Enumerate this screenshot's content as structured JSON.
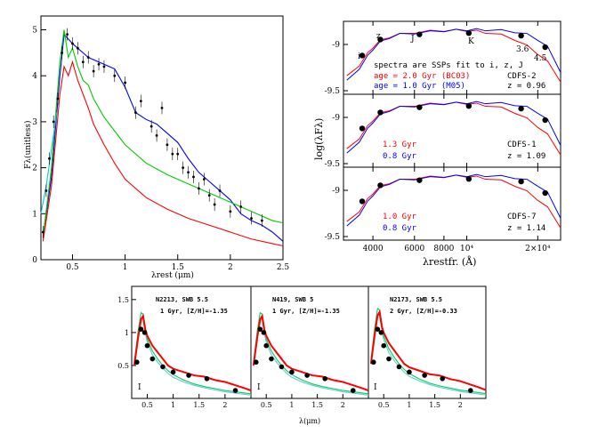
{
  "chart_data": [
    {
      "id": "panel-a",
      "type": "line",
      "xlabel": "λrest (μm)",
      "ylabel": "Fλ(unitless)",
      "xlim": [
        0.2,
        2.5
      ],
      "ylim": [
        0,
        5.3
      ],
      "xticks": [
        "0.5",
        "1",
        "1.5",
        "2",
        "2.5"
      ],
      "yticks": [
        "0",
        "1",
        "2",
        "3",
        "4",
        "5"
      ],
      "series": [
        {
          "color": "#0000ff",
          "x": [
            0.22,
            0.3,
            0.38,
            0.42,
            0.46,
            0.5,
            0.55,
            0.6,
            0.65,
            0.7,
            0.75,
            0.8,
            0.85,
            0.9,
            1.0,
            1.1,
            1.2,
            1.3,
            1.4,
            1.5,
            1.6,
            1.7,
            1.8,
            1.9,
            2.0,
            2.1,
            2.2,
            2.3,
            2.4,
            2.5
          ],
          "y": [
            0.5,
            1.8,
            4.0,
            4.9,
            4.8,
            4.7,
            4.6,
            4.5,
            4.4,
            4.35,
            4.3,
            4.25,
            4.2,
            4.15,
            3.75,
            3.2,
            3.05,
            2.95,
            2.75,
            2.55,
            2.2,
            1.9,
            1.7,
            1.5,
            1.3,
            1.0,
            0.85,
            0.75,
            0.6,
            0.4
          ]
        },
        {
          "color": "#00cc00",
          "x": [
            0.22,
            0.3,
            0.38,
            0.42,
            0.46,
            0.5,
            0.55,
            0.6,
            0.65,
            0.7,
            0.8,
            0.9,
            1.0,
            1.2,
            1.4,
            1.6,
            1.8,
            2.0,
            2.2,
            2.4,
            2.5
          ],
          "y": [
            0.5,
            2.0,
            4.3,
            5.0,
            4.4,
            4.6,
            4.2,
            3.9,
            3.8,
            3.5,
            3.1,
            2.8,
            2.5,
            2.1,
            1.85,
            1.65,
            1.45,
            1.25,
            1.05,
            0.85,
            0.8
          ]
        },
        {
          "color": "#ff0000",
          "x": [
            0.22,
            0.3,
            0.38,
            0.42,
            0.46,
            0.5,
            0.55,
            0.6,
            0.65,
            0.7,
            0.8,
            0.9,
            1.0,
            1.2,
            1.4,
            1.6,
            1.8,
            2.0,
            2.2,
            2.4,
            2.5
          ],
          "y": [
            0.4,
            1.6,
            3.6,
            4.2,
            4.0,
            4.3,
            3.9,
            3.6,
            3.3,
            2.95,
            2.5,
            2.1,
            1.75,
            1.35,
            1.1,
            0.9,
            0.75,
            0.6,
            0.45,
            0.35,
            0.3
          ]
        },
        {
          "color": "#00cccc",
          "x": [
            0.2,
            0.25,
            0.3,
            0.35
          ],
          "y": [
            1.0,
            1.6,
            2.4,
            3.2
          ]
        }
      ],
      "points": {
        "x": [
          0.22,
          0.25,
          0.28,
          0.32,
          0.36,
          0.4,
          0.45,
          0.5,
          0.55,
          0.6,
          0.65,
          0.7,
          0.75,
          0.8,
          0.9,
          1.0,
          1.1,
          1.15,
          1.25,
          1.3,
          1.35,
          1.4,
          1.45,
          1.5,
          1.55,
          1.6,
          1.65,
          1.7,
          1.75,
          1.8,
          1.85,
          1.9,
          2.0,
          2.1,
          2.2,
          2.3
        ],
        "y": [
          0.6,
          1.5,
          2.2,
          3.0,
          3.5,
          4.5,
          4.9,
          4.7,
          4.6,
          4.3,
          4.4,
          4.1,
          4.25,
          4.2,
          4.0,
          3.85,
          3.2,
          3.45,
          2.9,
          2.7,
          3.3,
          2.5,
          2.3,
          2.3,
          2.0,
          1.9,
          1.8,
          1.55,
          1.75,
          1.4,
          1.2,
          1.5,
          1.05,
          1.15,
          0.9,
          0.85
        ]
      }
    },
    {
      "id": "panel-b",
      "type": "line",
      "xlabel": "λrestfr. (Å)",
      "ylabel": "log(λFλ)",
      "xticks": [
        "4000",
        "6000",
        "8000",
        "10⁴",
        "2×10⁴"
      ],
      "subpanels": [
        {
          "yticks": [
            "-9",
            "-9.5"
          ],
          "filter_labels": [
            "i",
            "z",
            "J",
            "K",
            "3.6",
            "4.5"
          ],
          "annotations": [
            "spectra are SSPs fit to i, z, J",
            "age = 2.0 Gyr (BC03)",
            "age = 1.0 Gyr (M05)",
            "CDFS-2",
            "z = 0.96"
          ],
          "series_colors": [
            "#ff0000",
            "#0000ff"
          ]
        },
        {
          "yticks": [
            "-9",
            "-9.5"
          ],
          "annotations": [
            "1.3 Gyr",
            "0.8 Gyr",
            "CDFS-1",
            "z = 1.09"
          ],
          "series_colors": [
            "#ff0000",
            "#0000ff"
          ]
        },
        {
          "yticks": [
            "-9",
            "-9.5"
          ],
          "annotations": [
            "1.0 Gyr",
            "0.8 Gyr",
            "CDFS-7",
            "z = 1.14"
          ],
          "series_colors": [
            "#ff0000",
            "#0000ff"
          ]
        }
      ]
    },
    {
      "id": "panel-c",
      "type": "line",
      "xlabel": "λ(μm)",
      "xticks": [
        "0.5",
        "1",
        "1.5",
        "2"
      ],
      "yticks": [
        "0.5",
        "1",
        "1.5"
      ],
      "subpanels": [
        {
          "title": "N2213, SWB 5.5",
          "subtitle": "1 Gyr, [Z/H]=-1.35",
          "marker": "I"
        },
        {
          "title": "N419, SWB 5",
          "subtitle": "1 Gyr, [Z/H]=-1.35",
          "marker": "I"
        },
        {
          "title": "N2173, SWB 5.5",
          "subtitle": "2 Gyr, [Z/H]=-0.33",
          "marker": "I"
        }
      ],
      "series_colors": [
        "#ff0000",
        "#00cc66",
        "#66cccc"
      ]
    }
  ]
}
